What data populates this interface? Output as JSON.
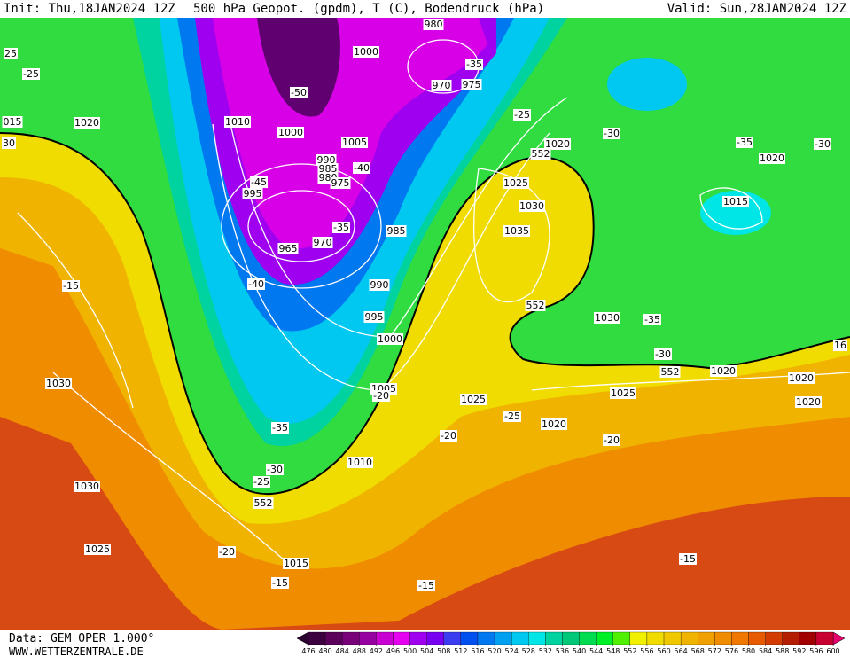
{
  "header": {
    "init": "Init: Thu,18JAN2024 12Z",
    "title": "500 hPa Geopot. (gpdm), T (C), Bodendruck (hPa)",
    "valid": "Valid: Sun,28JAN2024 12Z"
  },
  "footer": {
    "data": "Data: GEM OPER 1.000°",
    "site": "WWW.WETTERZENTRALE.DE"
  },
  "colorbar": {
    "ticks": [
      476,
      480,
      484,
      488,
      492,
      496,
      500,
      504,
      508,
      512,
      516,
      520,
      524,
      528,
      532,
      536,
      540,
      544,
      548,
      552,
      556,
      560,
      564,
      568,
      572,
      576,
      580,
      584,
      588,
      592,
      596,
      600
    ],
    "colors": [
      "#3c0040",
      "#5a005a",
      "#780078",
      "#9600a0",
      "#c800d2",
      "#e600f0",
      "#a000f0",
      "#7800f0",
      "#3c3cf0",
      "#0050f0",
      "#0078f0",
      "#00a0f0",
      "#00c8f0",
      "#00e6e6",
      "#00d2a0",
      "#00c878",
      "#00dc50",
      "#00f028",
      "#50f000",
      "#f0f000",
      "#f0dc00",
      "#f0c800",
      "#f0b400",
      "#f0a000",
      "#f08c00",
      "#f07800",
      "#e65a00",
      "#d23c00",
      "#b41e00",
      "#a00000",
      "#c80032"
    ],
    "under_color": "#2a0030",
    "over_color": "#e6006e"
  },
  "map": {
    "labels": [
      "1000",
      "980",
      "-35",
      "970",
      "975",
      "-50",
      "1010",
      "1000",
      "1005",
      "1020",
      "-25",
      "25",
      "015",
      "30",
      "-25",
      "-30",
      "1020",
      "552",
      "-35",
      "-30",
      "1020",
      "990",
      "985",
      "980",
      "975",
      "-40",
      "-45",
      "995",
      "1025",
      "1030",
      "1015",
      "985",
      "-35",
      "965",
      "970",
      "1035",
      "-15",
      "-40",
      "990",
      "552",
      "995",
      "1030",
      "-35",
      "1000",
      "16",
      "-30",
      "552",
      "1020",
      "1020",
      "1030",
      "1005",
      "-20",
      "1025",
      "1025",
      "1020",
      "-25",
      "1020",
      "-35",
      "-20",
      "-20",
      "1010",
      "-30",
      "-25",
      "552",
      "1030",
      "1025",
      "-20",
      "1015",
      "-15",
      "-15",
      "-15"
    ]
  }
}
